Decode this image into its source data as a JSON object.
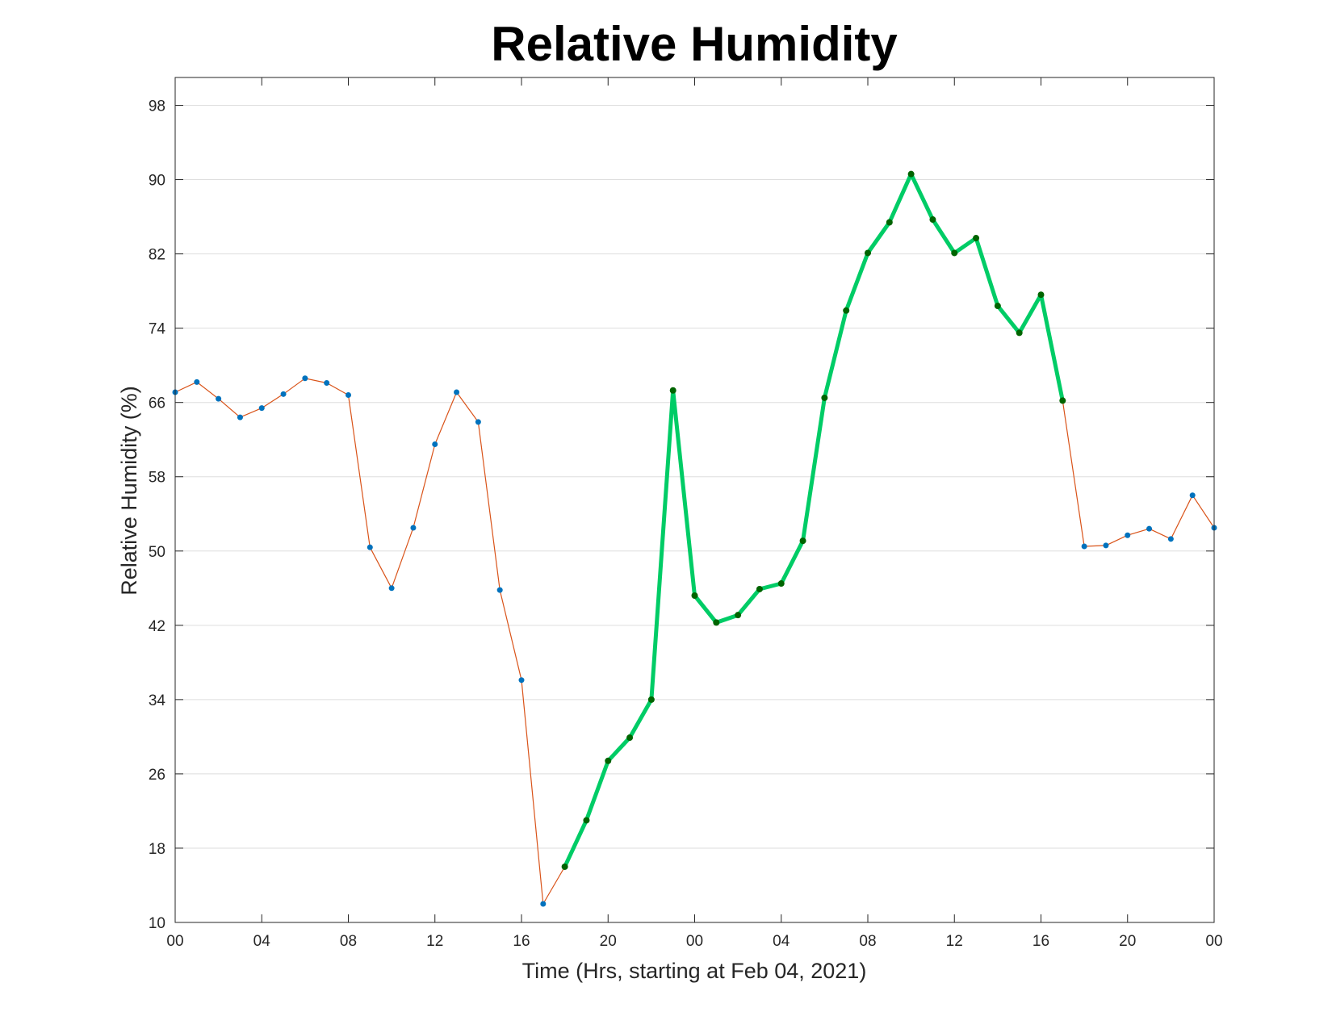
{
  "chart_data": {
    "type": "line",
    "title": "Relative Humidity",
    "xlabel": "Time (Hrs, starting at Feb 04, 2021)",
    "ylabel": "Relative Humidity (%)",
    "x_unit": "hours",
    "xlim": [
      0,
      48
    ],
    "ylim": [
      10,
      101
    ],
    "x_ticks": [
      0,
      4,
      8,
      12,
      16,
      20,
      24,
      28,
      32,
      36,
      40,
      44,
      48
    ],
    "x_tick_labels": [
      "00",
      "04",
      "08",
      "12",
      "16",
      "20",
      "00",
      "04",
      "08",
      "12",
      "16",
      "20",
      "00"
    ],
    "y_ticks": [
      10,
      18,
      26,
      34,
      42,
      50,
      58,
      66,
      74,
      82,
      90,
      98
    ],
    "y_tick_labels": [
      "10",
      "18",
      "26",
      "34",
      "42",
      "50",
      "58",
      "66",
      "74",
      "82",
      "90",
      "98"
    ],
    "grid": "horizontal",
    "legend": "none",
    "x": [
      0,
      1,
      2,
      3,
      4,
      5,
      6,
      7,
      8,
      9,
      10,
      11,
      12,
      13,
      14,
      15,
      16,
      17,
      18,
      19,
      20,
      21,
      22,
      23,
      24,
      25,
      26,
      27,
      28,
      29,
      30,
      31,
      32,
      33,
      34,
      35,
      36,
      37,
      38,
      39,
      40,
      41,
      42,
      43,
      44,
      45,
      46,
      47,
      48
    ],
    "values": [
      67.1,
      68.2,
      66.4,
      64.4,
      65.4,
      66.9,
      68.6,
      68.1,
      66.8,
      50.4,
      46.0,
      52.5,
      61.5,
      67.1,
      63.9,
      45.8,
      36.1,
      12.0,
      16.0,
      21.0,
      27.4,
      29.9,
      34.0,
      67.3,
      45.2,
      42.3,
      43.1,
      45.9,
      46.5,
      51.1,
      66.5,
      75.9,
      82.1,
      85.4,
      90.6,
      85.7,
      82.1,
      83.7,
      76.4,
      73.5,
      77.6,
      66.2,
      50.5,
      50.6,
      51.7,
      52.4,
      51.3,
      56.0,
      52.5
    ],
    "highlight_range": [
      18,
      41
    ],
    "colors": {
      "base_line": "#d95319",
      "base_marker": "#0072bd",
      "highlight_line": "#00cc66",
      "highlight_marker": "#006400",
      "axes": "#262626",
      "grid": "#dedede"
    }
  }
}
